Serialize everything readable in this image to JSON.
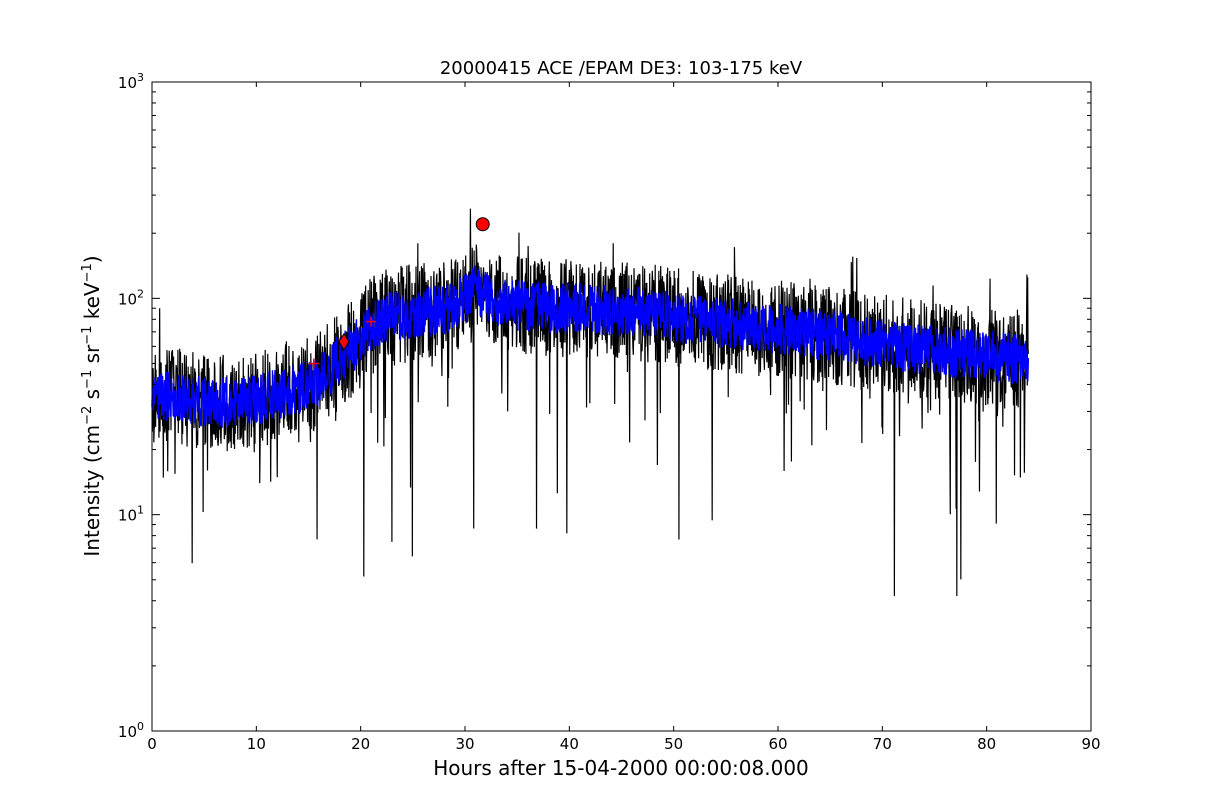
{
  "chart_data": {
    "type": "line",
    "title": "20000415 ACE /EPAM DE3: 103-175 keV",
    "xlabel": "Hours after 15-04-2000 00:00:08.000",
    "ylabel": {
      "prefix": "Intensity (cm",
      "parts": [
        {
          "sup": "−2",
          "text": " s"
        },
        {
          "sup": "−1",
          "text": " sr"
        },
        {
          "sup": "−1",
          "text": " keV"
        },
        {
          "sup": "−1",
          "text": ")"
        }
      ]
    },
    "xlim": [
      0,
      90
    ],
    "ylim": [
      1,
      1000
    ],
    "yscale": "log",
    "xticks": [
      "0",
      "10",
      "20",
      "30",
      "40",
      "50",
      "60",
      "70",
      "80",
      "90"
    ],
    "yticks": [
      {
        "base": "10",
        "exp": "0"
      },
      {
        "base": "10",
        "exp": "1"
      },
      {
        "base": "10",
        "exp": "2"
      },
      {
        "base": "10",
        "exp": "3"
      }
    ],
    "grid": false,
    "series": [
      {
        "color": "#000000",
        "style": "raw noisy intensity",
        "x": [
          0,
          2,
          4,
          6,
          8,
          10,
          12,
          14,
          16,
          17,
          18,
          19,
          20,
          21,
          22,
          24,
          26,
          28,
          29,
          30,
          31,
          32,
          33,
          34,
          36,
          38,
          40,
          42,
          44,
          46,
          48,
          50,
          52,
          54,
          56,
          58,
          60,
          62,
          64,
          66,
          68,
          70,
          72,
          74,
          76,
          78,
          80,
          82,
          84
        ],
        "values": [
          36,
          35,
          34,
          33,
          33,
          34,
          36,
          38,
          42,
          46,
          52,
          58,
          65,
          74,
          80,
          84,
          86,
          88,
          92,
          100,
          108,
          104,
          96,
          93,
          92,
          90,
          90,
          89,
          88,
          87,
          85,
          82,
          80,
          78,
          76,
          74,
          72,
          70,
          68,
          66,
          64,
          62,
          60,
          58,
          56,
          55,
          54,
          53,
          52
        ]
      },
      {
        "color": "#0000ff",
        "style": "smoothed intensity band",
        "x": [
          0,
          2,
          4,
          6,
          8,
          10,
          12,
          14,
          16,
          17,
          18,
          19,
          20,
          21,
          22,
          24,
          26,
          28,
          29,
          30,
          31,
          32,
          33,
          34,
          36,
          38,
          40,
          42,
          44,
          46,
          48,
          50,
          52,
          54,
          56,
          58,
          60,
          62,
          64,
          66,
          68,
          70,
          72,
          74,
          76,
          78,
          80,
          82,
          84
        ],
        "values": [
          36,
          35,
          34,
          33,
          33,
          34,
          36,
          38,
          42,
          46,
          52,
          58,
          65,
          74,
          80,
          84,
          86,
          88,
          92,
          100,
          108,
          104,
          96,
          93,
          92,
          90,
          90,
          89,
          88,
          87,
          85,
          82,
          80,
          78,
          76,
          74,
          72,
          70,
          68,
          66,
          64,
          62,
          60,
          58,
          56,
          55,
          54,
          53,
          52
        ]
      }
    ],
    "markers": [
      {
        "shape": "circle",
        "x": 31.7,
        "y": 220,
        "color": "#ff0000"
      },
      {
        "shape": "diamond",
        "x": 18.4,
        "y": 63,
        "color": "#ff0000"
      },
      {
        "shape": "plus",
        "x": 15.5,
        "y": 50,
        "color": "#ff0000"
      },
      {
        "shape": "plus",
        "x": 21.0,
        "y": 78,
        "color": "#ff0000"
      }
    ]
  }
}
